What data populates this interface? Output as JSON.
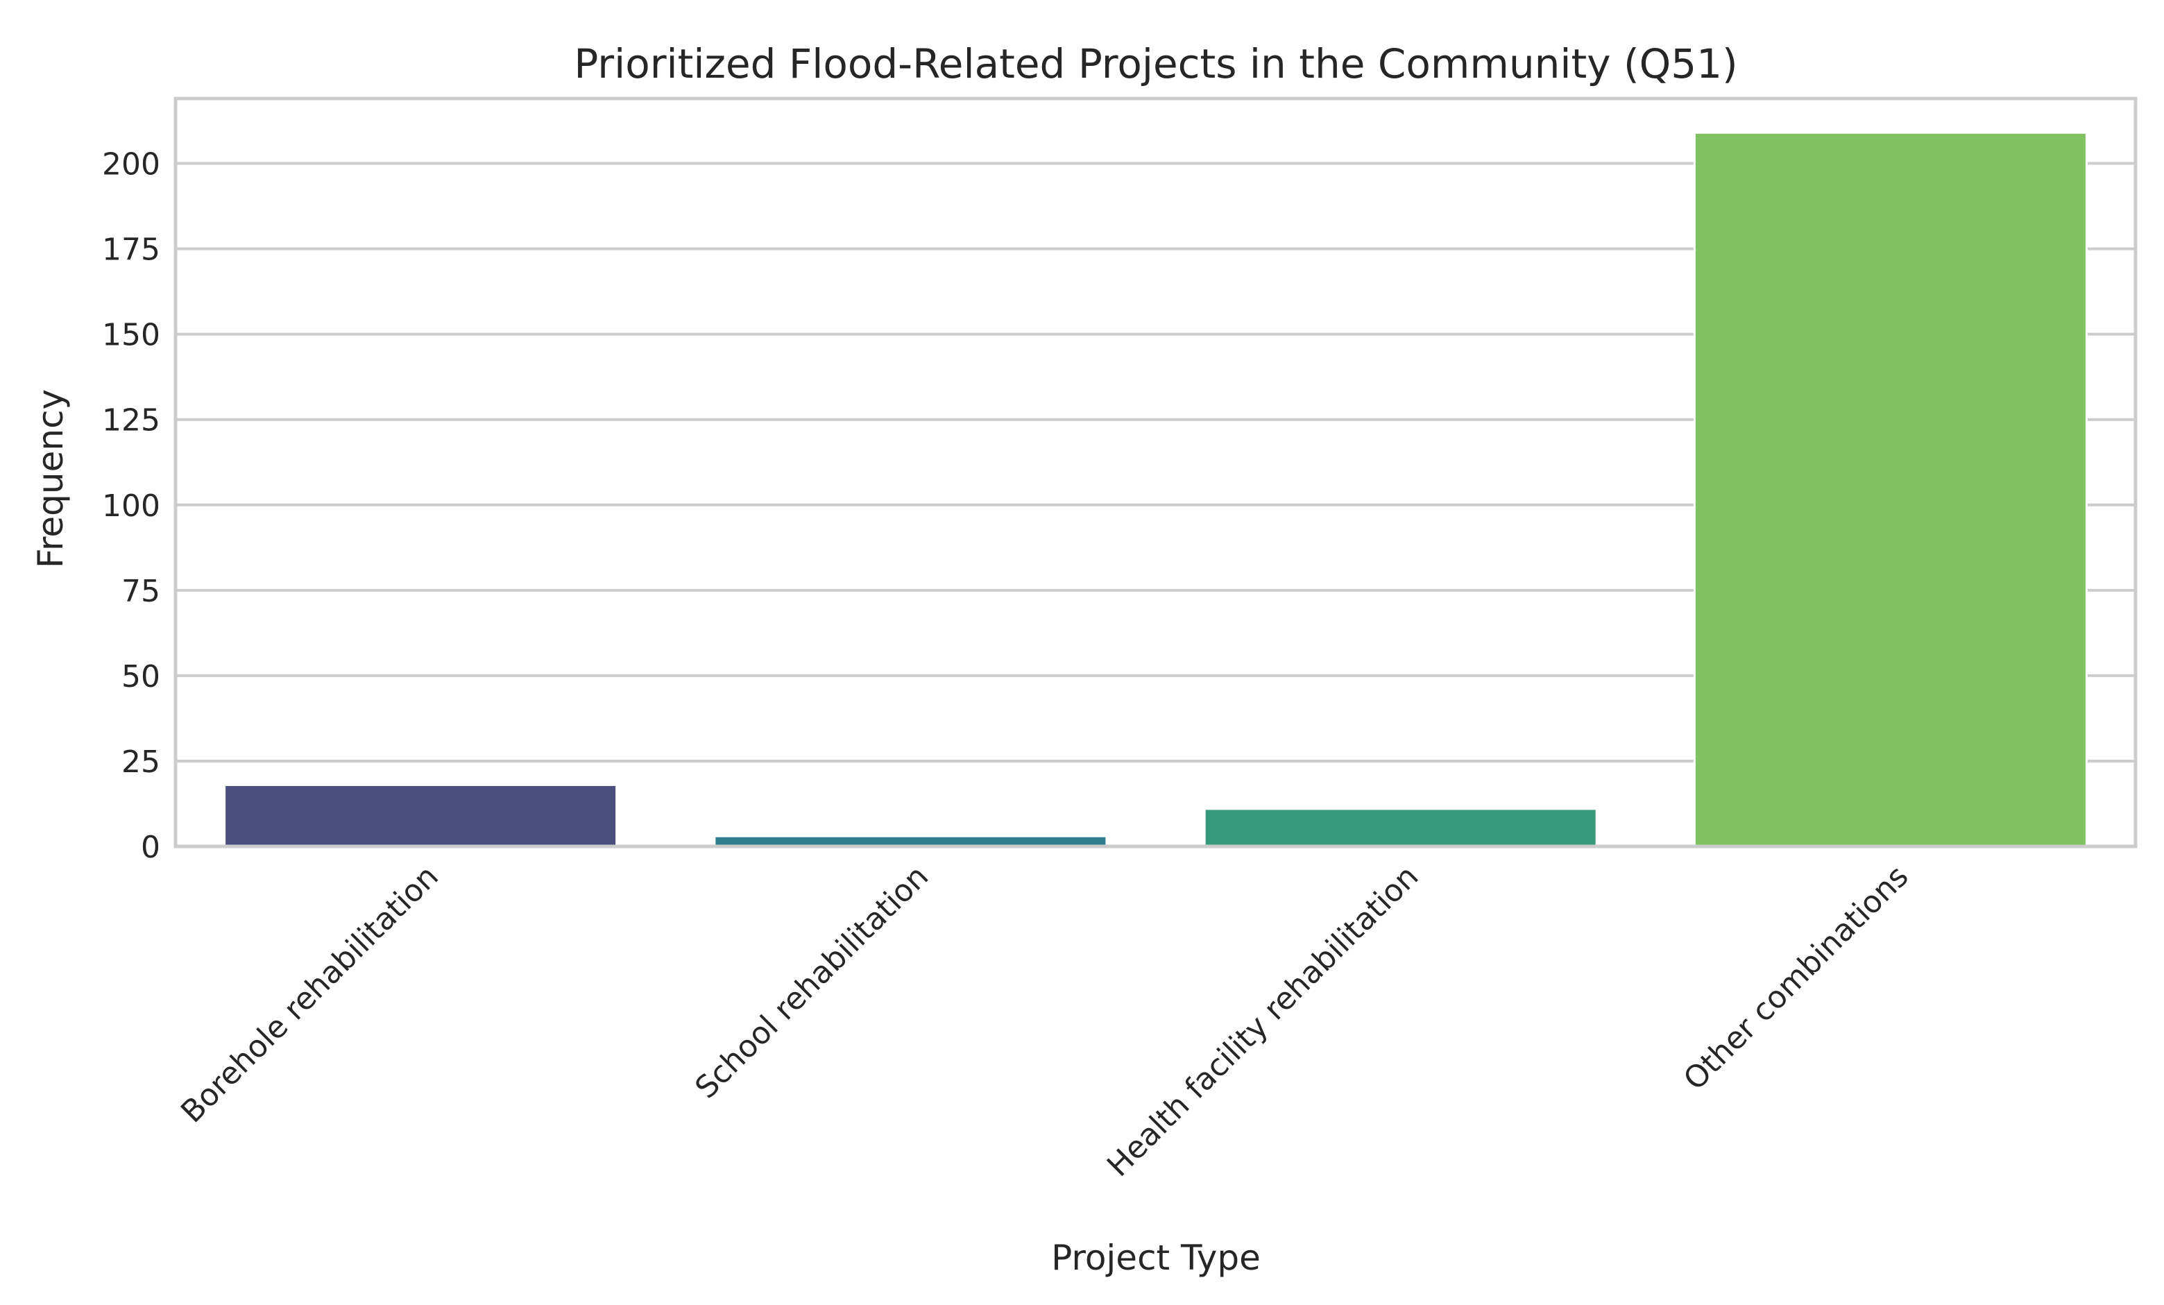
{
  "chart_data": {
    "type": "bar",
    "title": "Prioritized Flood-Related Projects in the Community (Q51)",
    "xlabel": "Project Type",
    "ylabel": "Frequency",
    "categories": [
      "Borehole rehabilitation",
      "School rehabilitation",
      "Health facility rehabilitation",
      "Other combinations"
    ],
    "values": [
      18,
      3,
      11,
      209
    ],
    "colors": [
      "#4a4e7d",
      "#2e7f8a",
      "#36997a",
      "#80c261"
    ],
    "ylim": [
      0,
      219
    ],
    "yticks": [
      0,
      25,
      50,
      75,
      100,
      125,
      150,
      175,
      200
    ],
    "grid": "horizontal",
    "legend": "none"
  }
}
